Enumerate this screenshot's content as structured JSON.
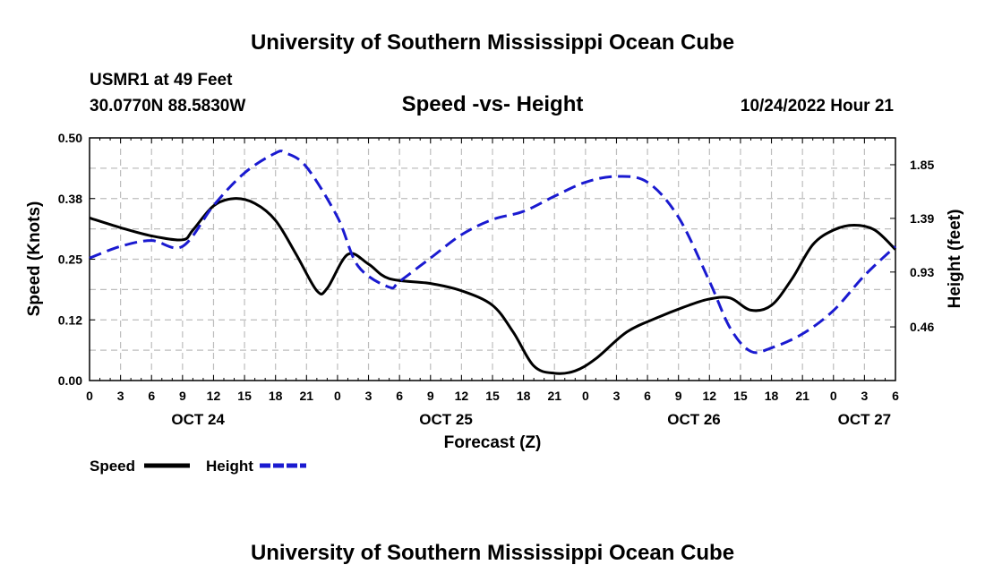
{
  "header": {
    "title": "University of Southern Mississippi Ocean Cube",
    "station": "USMR1 at 49 Feet",
    "location": "30.0770N  88.5830W",
    "chart_title": "Speed -vs- Height",
    "timestamp": "10/24/2022 Hour 21",
    "footer_title": "University of Southern Mississippi Ocean Cube"
  },
  "colors": {
    "speed": "#000000",
    "height": "#1a1ad0",
    "grid": "#bdbdbd"
  },
  "chart_data": {
    "type": "line",
    "title": "Speed -vs- Height",
    "xlabel": "Forecast (Z)",
    "ylabel_left": "Speed (Knots)",
    "ylabel_right": "Height (feet)",
    "xlim": [
      0,
      78
    ],
    "ylim_left": [
      0,
      0.5
    ],
    "ylim_right": [
      0,
      2.08
    ],
    "left_ticks": [
      0.0,
      0.125,
      0.25,
      0.375,
      0.5
    ],
    "left_tick_labels": [
      "0.00",
      "0.12",
      "0.25",
      "0.38",
      "0.50"
    ],
    "right_ticks": [
      0.46,
      0.93,
      1.39,
      1.85
    ],
    "right_tick_labels": [
      "0.46",
      "0.93",
      "1.39",
      "1.85"
    ],
    "x_ticks": [
      0,
      3,
      6,
      9,
      12,
      15,
      18,
      21,
      24,
      27,
      30,
      33,
      36,
      39,
      42,
      45,
      48,
      51,
      54,
      57,
      60,
      63,
      66,
      69,
      72,
      75,
      78
    ],
    "x_tick_labels": [
      "0",
      "3",
      "6",
      "9",
      "12",
      "15",
      "18",
      "21",
      "0",
      "3",
      "6",
      "9",
      "12",
      "15",
      "18",
      "21",
      "0",
      "3",
      "6",
      "9",
      "12",
      "15",
      "18",
      "21",
      "0",
      "3",
      "6"
    ],
    "date_labels": [
      {
        "x": 10.5,
        "label": "OCT 24"
      },
      {
        "x": 34.5,
        "label": "OCT 25"
      },
      {
        "x": 58.5,
        "label": "OCT 26"
      },
      {
        "x": 75,
        "label": "OCT 27"
      }
    ],
    "grid": true,
    "series": [
      {
        "name": "Speed",
        "axis": "left",
        "style": "solid",
        "x": [
          0,
          3,
          6,
          9,
          10,
          12,
          14,
          16,
          18,
          20,
          22,
          23,
          25,
          27,
          29,
          33,
          36,
          39,
          41,
          43,
          45,
          47,
          49,
          52,
          55,
          58,
          60,
          62,
          64,
          66,
          68,
          70,
          72,
          74,
          76,
          78
        ],
        "values": [
          0.335,
          0.315,
          0.298,
          0.29,
          0.31,
          0.36,
          0.375,
          0.365,
          0.33,
          0.26,
          0.185,
          0.19,
          0.26,
          0.24,
          0.21,
          0.2,
          0.185,
          0.155,
          0.1,
          0.03,
          0.015,
          0.02,
          0.045,
          0.1,
          0.13,
          0.155,
          0.168,
          0.17,
          0.145,
          0.155,
          0.21,
          0.28,
          0.31,
          0.32,
          0.31,
          0.27
        ]
      },
      {
        "name": "Height",
        "axis": "right",
        "style": "dashed",
        "x": [
          0,
          3,
          6,
          9,
          12,
          15,
          18,
          19,
          21,
          24,
          26,
          29,
          30,
          33,
          36,
          39,
          42,
          45,
          48,
          51,
          54,
          57,
          60,
          62,
          64,
          66,
          69,
          72,
          75,
          78
        ],
        "values": [
          1.05,
          1.15,
          1.2,
          1.15,
          1.5,
          1.78,
          1.95,
          1.95,
          1.83,
          1.4,
          0.98,
          0.8,
          0.85,
          1.05,
          1.25,
          1.38,
          1.45,
          1.58,
          1.7,
          1.75,
          1.7,
          1.4,
          0.85,
          0.45,
          0.25,
          0.28,
          0.4,
          0.6,
          0.9,
          1.15
        ]
      }
    ]
  },
  "legend": {
    "speed_label": "Speed",
    "height_label": "Height"
  }
}
